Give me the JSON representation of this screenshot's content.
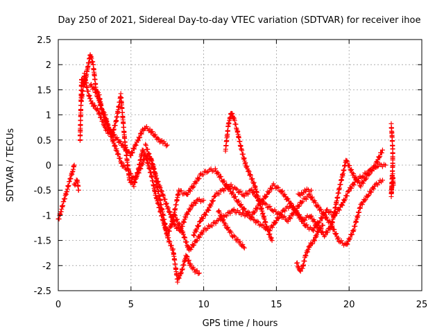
{
  "chart_data": {
    "type": "scatter",
    "title": "Day 250 of 2021, Sidereal Day-to-day VTEC variation (SDTVAR) for receiver ihoe",
    "xlabel": "GPS time / hours",
    "ylabel": "SDTVAR / TECUs",
    "xlim": [
      0,
      25
    ],
    "ylim": [
      -2.5,
      2.5
    ],
    "xticks": [
      0,
      5,
      10,
      15,
      20,
      25
    ],
    "xtick_labels": [
      "0",
      "5",
      "10",
      "15",
      "20",
      "25"
    ],
    "yticks": [
      -2.5,
      -2,
      -1.5,
      -1,
      -0.5,
      0,
      0.5,
      1,
      1.5,
      2,
      2.5
    ],
    "ytick_labels": [
      "-2.5",
      "-2",
      "-1.5",
      "-1",
      "-0.5",
      "0",
      "0.5",
      "1",
      "1.5",
      "2",
      "2.5"
    ],
    "grid": true,
    "marker": "+",
    "color": "#ff0000",
    "series": [
      {
        "name": "s1",
        "x": [
          0.0,
          0.2,
          0.4,
          0.6,
          0.8,
          1.0,
          1.1
        ],
        "y": [
          -1.1,
          -0.9,
          -0.7,
          -0.5,
          -0.3,
          -0.1,
          0.0
        ]
      },
      {
        "name": "s2",
        "x": [
          1.1,
          1.3,
          1.4
        ],
        "y": [
          -0.4,
          -0.3,
          -0.5
        ]
      },
      {
        "name": "s3",
        "x": [
          1.5,
          1.6,
          1.8,
          2.0,
          2.2,
          2.4,
          2.6,
          2.8,
          3.0,
          3.2,
          3.5,
          3.8,
          4.1,
          4.4,
          4.7,
          5.0,
          5.3,
          5.5,
          5.8,
          6.0,
          6.3,
          6.6,
          6.9,
          7.2,
          7.5
        ],
        "y": [
          0.5,
          1.7,
          1.6,
          1.9,
          2.2,
          2.0,
          1.5,
          1.4,
          1.1,
          1.0,
          0.7,
          0.6,
          0.5,
          0.4,
          0.3,
          0.2,
          0.4,
          0.5,
          0.7,
          0.75,
          0.7,
          0.6,
          0.5,
          0.45,
          0.4
        ]
      },
      {
        "name": "s4",
        "x": [
          1.6,
          1.8,
          2.0,
          2.2,
          2.4,
          2.7,
          3.0,
          3.3,
          3.6,
          4.0,
          4.4,
          4.8,
          5.2,
          5.6,
          6.0,
          6.4,
          6.8,
          7.2,
          7.6,
          8.0,
          8.4,
          8.8,
          9.2,
          9.6,
          10.0
        ],
        "y": [
          1.3,
          1.8,
          1.5,
          1.3,
          1.2,
          1.1,
          0.9,
          0.7,
          0.6,
          0.3,
          0.0,
          -0.1,
          -0.3,
          -0.1,
          0.2,
          0.1,
          -0.3,
          -0.6,
          -0.9,
          -1.2,
          -1.3,
          -1.0,
          -0.8,
          -0.7,
          -0.7
        ]
      },
      {
        "name": "s5",
        "x": [
          2.2,
          2.5,
          2.8,
          3.1,
          3.4,
          3.7,
          4.0,
          4.3,
          4.6,
          4.9,
          5.2,
          5.5,
          5.8,
          6.1,
          6.4,
          6.7,
          7.0,
          7.3,
          7.6,
          7.9,
          8.2,
          8.5,
          8.8,
          9.1,
          9.4,
          9.7
        ],
        "y": [
          1.6,
          1.5,
          1.3,
          1.0,
          0.8,
          0.6,
          0.9,
          1.4,
          0.4,
          -0.3,
          -0.4,
          -0.1,
          0.3,
          0.1,
          -0.2,
          -0.6,
          -0.9,
          -1.2,
          -1.5,
          -1.7,
          -2.3,
          -2.1,
          -1.8,
          -2.0,
          -2.1,
          -2.15
        ]
      },
      {
        "name": "s6",
        "x": [
          6.0,
          6.5,
          7.0,
          7.5,
          8.0,
          8.5,
          9.0,
          9.5,
          10.0,
          10.5,
          11.0,
          11.5,
          12.0,
          12.5,
          13.0,
          13.5,
          14.0,
          14.5,
          15.0,
          15.5,
          16.0,
          16.5,
          17.0,
          17.5,
          18.0,
          18.5,
          19.0,
          19.5,
          20.0,
          20.5,
          21.0,
          21.5,
          22.0,
          22.5
        ],
        "y": [
          0.4,
          0.0,
          -0.7,
          -1.4,
          -1.0,
          -1.3,
          -1.7,
          -1.5,
          -1.3,
          -1.2,
          -1.1,
          -1.0,
          -0.9,
          -0.95,
          -1.0,
          -1.1,
          -1.2,
          -1.3,
          -1.1,
          -0.9,
          -0.8,
          -1.0,
          -1.2,
          -1.3,
          -1.1,
          -0.9,
          -1.0,
          -0.8,
          -0.5,
          -0.3,
          -0.2,
          -0.1,
          0.0,
          0.0
        ]
      },
      {
        "name": "s7",
        "x": [
          7.8,
          8.3,
          8.8,
          9.3,
          9.8,
          10.3,
          10.8,
          11.3,
          11.8,
          12.3,
          12.8,
          13.3,
          13.8,
          14.3,
          14.8,
          15.3,
          15.8,
          16.3,
          16.8,
          17.3,
          17.8,
          18.3,
          18.8,
          19.3,
          19.8,
          20.3,
          20.8,
          21.3,
          21.8,
          22.3
        ],
        "y": [
          -1.2,
          -0.5,
          -0.6,
          -0.4,
          -0.2,
          -0.1,
          -0.1,
          -0.3,
          -0.5,
          -0.7,
          -0.9,
          -1.0,
          -0.8,
          -0.6,
          -0.4,
          -0.5,
          -0.7,
          -0.9,
          -1.1,
          -1.0,
          -1.2,
          -1.4,
          -1.2,
          -1.5,
          -1.6,
          -1.3,
          -0.8,
          -0.6,
          -0.4,
          -0.3
        ]
      },
      {
        "name": "s8",
        "x": [
          9.3,
          9.8,
          10.3,
          10.8,
          11.3,
          11.8,
          12.3,
          12.8,
          13.3,
          13.8,
          14.3,
          14.8,
          15.3,
          15.8,
          16.3,
          16.8,
          17.3,
          17.8,
          18.3,
          18.8,
          19.3,
          19.8,
          20.3,
          20.8,
          21.3,
          21.8,
          22.3
        ],
        "y": [
          -1.4,
          -1.1,
          -0.9,
          -0.6,
          -0.5,
          -0.4,
          -0.5,
          -0.6,
          -0.5,
          -0.7,
          -0.8,
          -0.9,
          -1.0,
          -1.1,
          -0.9,
          -0.7,
          -0.6,
          -0.8,
          -1.0,
          -1.2,
          -0.5,
          0.1,
          -0.2,
          -0.4,
          -0.2,
          0.0,
          0.3
        ]
      },
      {
        "name": "s9",
        "x": [
          11.5,
          11.7,
          11.9,
          12.1,
          12.3,
          12.6,
          12.9,
          13.2,
          13.5,
          13.8,
          14.1,
          14.4,
          14.7
        ],
        "y": [
          0.3,
          0.8,
          1.05,
          0.9,
          0.7,
          0.3,
          0.0,
          -0.2,
          -0.4,
          -0.7,
          -1.0,
          -1.3,
          -1.5
        ]
      },
      {
        "name": "s10",
        "x": [
          11.0,
          11.5,
          12.0,
          12.5,
          12.8
        ],
        "y": [
          -0.9,
          -1.2,
          -1.4,
          -1.55,
          -1.65
        ]
      },
      {
        "name": "s11",
        "x": [
          16.4,
          16.6,
          16.8,
          17.0,
          17.3,
          17.6,
          17.9,
          18.2
        ],
        "y": [
          -1.95,
          -2.1,
          -2.05,
          -1.8,
          -1.6,
          -1.5,
          -1.3,
          -1.2
        ]
      },
      {
        "name": "s12",
        "x": [
          16.5,
          16.8,
          17.1,
          17.4
        ],
        "y": [
          -0.6,
          -0.55,
          -0.5,
          -0.5
        ]
      },
      {
        "name": "s13",
        "x": [
          22.9,
          22.95,
          23.0,
          23.0,
          22.95,
          22.9,
          23.0,
          23.05
        ],
        "y": [
          0.8,
          0.6,
          0.3,
          0.0,
          -0.3,
          -0.6,
          -0.2,
          -0.4
        ]
      }
    ]
  }
}
